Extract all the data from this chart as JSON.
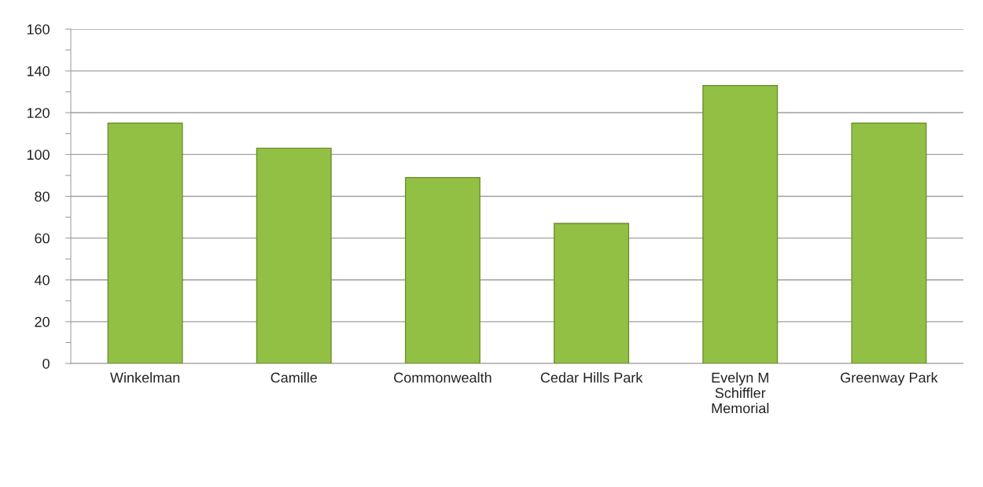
{
  "chart_data": {
    "type": "bar",
    "categories": [
      "Winkelman",
      "Camille",
      "Commonwealth",
      "Cedar Hills Park",
      "Evelyn M\nSchiffler\nMemorial",
      "Greenway Park"
    ],
    "values": [
      115,
      103,
      89,
      67,
      133,
      115
    ],
    "color": "#92c045",
    "ylim": [
      0,
      160
    ],
    "yticks": [
      0,
      {
        "value": 10,
        "label": null
      },
      20,
      {
        "value": 30,
        "label": null
      },
      40,
      {
        "value": 50,
        "label": null
      },
      60,
      {
        "value": 70,
        "label": null
      },
      80,
      {
        "value": 90,
        "label": null
      },
      100,
      {
        "value": 110,
        "label": null
      },
      120,
      {
        "value": 130,
        "label": null
      },
      140,
      {
        "value": 150,
        "label": null
      },
      160
    ],
    "grid": "y"
  }
}
